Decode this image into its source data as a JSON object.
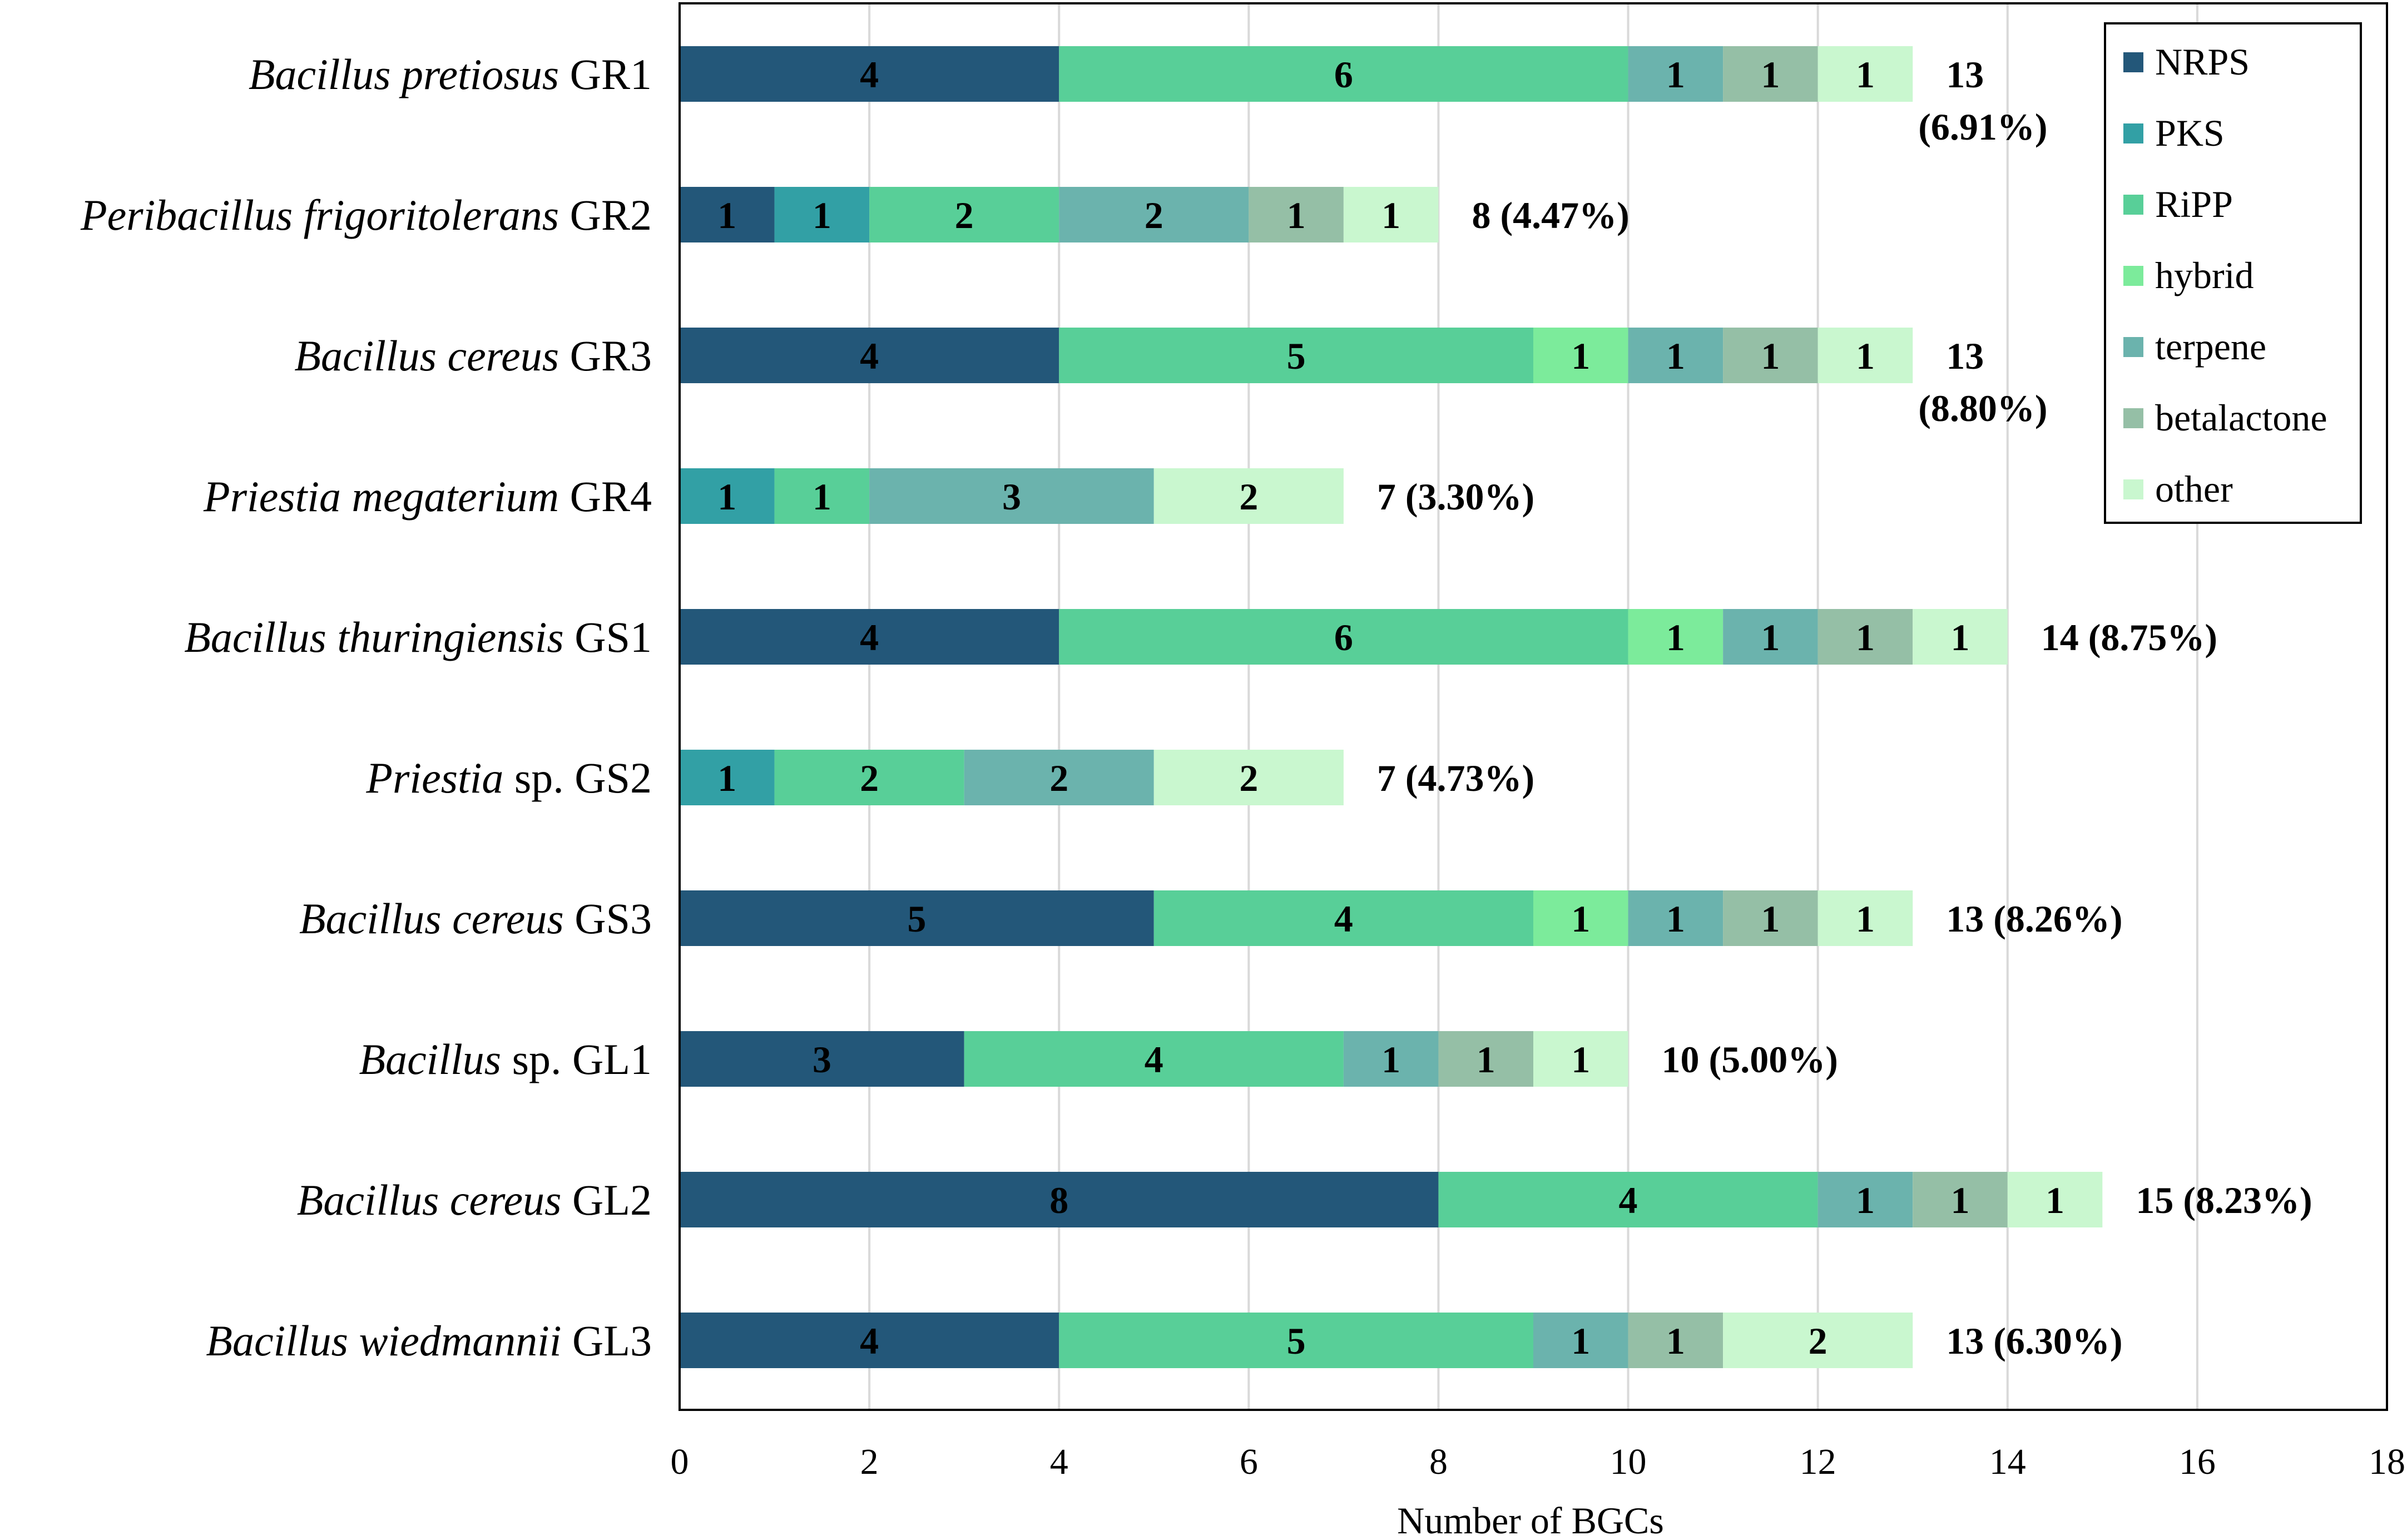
{
  "chart_data": {
    "type": "bar",
    "orientation": "horizontal",
    "stacked": true,
    "title": "",
    "xlabel": "Number of BGCs",
    "ylabel": "",
    "xlim": [
      0,
      18
    ],
    "xticks": [
      0,
      2,
      4,
      6,
      8,
      10,
      12,
      14,
      16,
      18
    ],
    "grid": true,
    "legend_position": "top-right",
    "categories": [
      {
        "italic": "Bacillus pretiosus",
        "rest": " GR1"
      },
      {
        "italic": "Peribacillus frigoritolerans",
        "rest": " GR2"
      },
      {
        "italic": "Bacillus cereus",
        "rest": " GR3"
      },
      {
        "italic": "Priestia megaterium",
        "rest": " GR4"
      },
      {
        "italic": "Bacillus thuringiensis",
        "rest": " GS1"
      },
      {
        "italic": "Priestia",
        "rest": " sp. GS2"
      },
      {
        "italic": "Bacillus cereus",
        "rest": " GS3"
      },
      {
        "italic": "Bacillus",
        "rest": " sp. GL1"
      },
      {
        "italic": "Bacillus cereus",
        "rest": " GL2"
      },
      {
        "italic": "Bacillus wiedmannii",
        "rest": " GL3"
      }
    ],
    "series": [
      {
        "name": "NRPS",
        "color": "#235779",
        "values": [
          4,
          1,
          4,
          0,
          4,
          0,
          5,
          3,
          8,
          4
        ]
      },
      {
        "name": "PKS",
        "color": "#32a0a5",
        "values": [
          0,
          1,
          0,
          1,
          0,
          1,
          0,
          0,
          0,
          0
        ]
      },
      {
        "name": "RiPP",
        "color": "#58cf98",
        "values": [
          6,
          2,
          5,
          1,
          6,
          2,
          4,
          4,
          4,
          5
        ]
      },
      {
        "name": "hybrid",
        "color": "#7ceb9b",
        "values": [
          0,
          0,
          1,
          0,
          1,
          0,
          1,
          0,
          0,
          0
        ]
      },
      {
        "name": "terpene",
        "color": "#6bb3ad",
        "values": [
          1,
          2,
          1,
          3,
          1,
          2,
          1,
          1,
          1,
          1
        ]
      },
      {
        "name": "betalactone",
        "color": "#95bfa6",
        "values": [
          1,
          1,
          1,
          0,
          1,
          0,
          1,
          1,
          1,
          1
        ]
      },
      {
        "name": "other",
        "color": "#c9f7cf",
        "values": [
          1,
          1,
          1,
          2,
          1,
          2,
          1,
          1,
          1,
          2
        ]
      }
    ],
    "totals": [
      [
        "13",
        "(6.91%)"
      ],
      [
        "8 (4.47%)"
      ],
      [
        "13",
        "(8.80%)"
      ],
      [
        "7 (3.30%)"
      ],
      [
        "14 (8.75%)"
      ],
      [
        "7 (4.73%)"
      ],
      [
        "13 (8.26%)"
      ],
      [
        "10 (5.00%)"
      ],
      [
        "15 (8.23%)"
      ],
      [
        "13 (6.30%)"
      ]
    ]
  }
}
